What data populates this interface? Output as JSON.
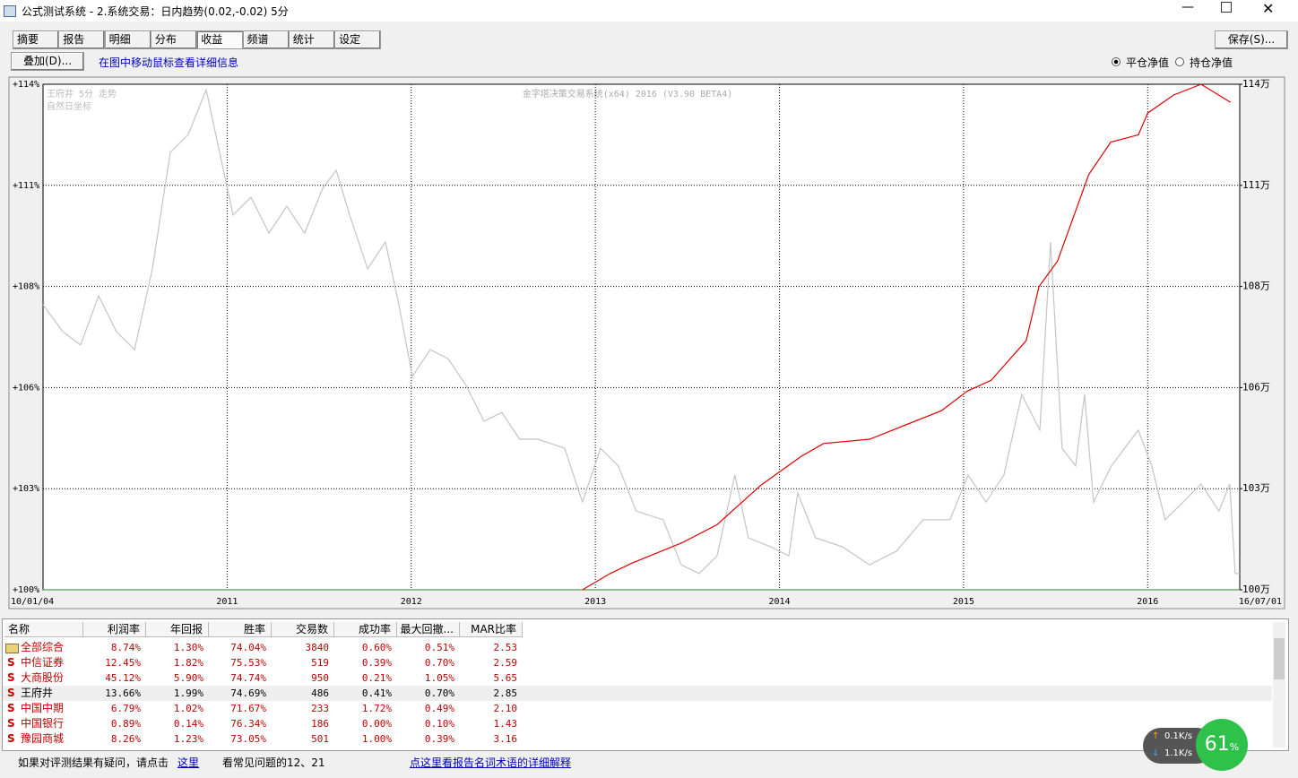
{
  "window": {
    "title": "公式测试系统 - 2.系统交易：日内趋势(0.02,-0.02) 5分"
  },
  "tabs": [
    "摘要",
    "报告",
    "明细",
    "分布",
    "收益",
    "频谱",
    "统计",
    "设定"
  ],
  "buttons": {
    "save": "保存(S)...",
    "overlay": "叠加(D)..."
  },
  "hint": "在图中移动鼠标查看详细信息",
  "radios": [
    "平仓净值",
    "持仓净值"
  ],
  "chart_data": {
    "type": "line",
    "annotations": [
      "王府井 5分 走势",
      "自然日坐标",
      "金字塔决策交易系统(x64) 2016 (V3.90 BETA4)"
    ],
    "xlim": [
      2010.0,
      2016.5
    ],
    "xticks": [
      {
        "value": 2010.0,
        "label": "10/01/04"
      },
      2011,
      2012,
      2013,
      2014,
      2015,
      2016,
      {
        "value": 2016.5,
        "label": "16/07/01"
      }
    ],
    "ylim": [
      100,
      114
    ],
    "yticks": [
      {
        "value": 100,
        "label": "+100%"
      },
      {
        "value": 102.8,
        "label": "+103%"
      },
      {
        "value": 105.6,
        "label": "+106%"
      },
      {
        "value": 108.4,
        "label": "+108%"
      },
      {
        "value": 111.2,
        "label": "+111%"
      },
      {
        "value": 114,
        "label": "+114%"
      }
    ],
    "y2lim": [
      100,
      114
    ],
    "y2ticks": [
      {
        "value": 100,
        "label": "100万"
      },
      {
        "value": 102.8,
        "label": "103万"
      },
      {
        "value": 105.6,
        "label": "106万"
      },
      {
        "value": 108.4,
        "label": "108万"
      },
      {
        "value": 111.2,
        "label": "111万"
      },
      {
        "value": 114,
        "label": "114万"
      }
    ],
    "grid": true,
    "series": [
      {
        "color": "#c4c4c4",
        "x": [
          2010.0,
          2010.107,
          2010.204,
          2010.302,
          2010.399,
          2010.497,
          2010.594,
          2010.691,
          2010.789,
          2010.886,
          2010.959,
          2011.032,
          2011.129,
          2011.227,
          2011.324,
          2011.421,
          2011.519,
          2011.592,
          2011.665,
          2011.763,
          2011.86,
          2011.933,
          2012.006,
          2012.103,
          2012.2,
          2012.298,
          2012.395,
          2012.492,
          2012.589,
          2012.687,
          2012.833,
          2012.93,
          2013.028,
          2013.125,
          2013.222,
          2013.368,
          2013.466,
          2013.564,
          2013.661,
          2013.758,
          2013.831,
          2013.953,
          2014.051,
          2014.099,
          2014.196,
          2014.342,
          2014.489,
          2014.635,
          2014.781,
          2014.927,
          2015.024,
          2015.122,
          2015.219,
          2015.316,
          2015.414,
          2015.472,
          2015.535,
          2015.609,
          2015.657,
          2015.706,
          2015.803,
          2015.949,
          2016.022,
          2016.095,
          2016.193,
          2016.29,
          2016.387,
          2016.446,
          2016.475,
          2016.5
        ],
        "values": [
          107.89,
          107.15,
          106.78,
          108.14,
          107.15,
          106.65,
          108.89,
          112.11,
          112.61,
          113.85,
          112.11,
          110.38,
          110.87,
          109.88,
          110.62,
          109.88,
          111.12,
          111.62,
          110.38,
          108.89,
          109.63,
          107.89,
          105.91,
          106.65,
          106.4,
          105.66,
          104.67,
          104.91,
          104.17,
          104.17,
          103.92,
          102.43,
          103.92,
          103.43,
          102.18,
          101.94,
          100.69,
          100.45,
          100.94,
          103.18,
          101.44,
          101.19,
          100.94,
          102.68,
          101.44,
          101.19,
          100.69,
          101.07,
          101.94,
          101.94,
          103.18,
          102.43,
          103.18,
          105.41,
          104.42,
          109.63,
          103.92,
          103.43,
          105.41,
          102.43,
          103.43,
          104.42,
          103.43,
          101.94,
          102.43,
          102.93,
          102.18,
          102.93,
          100.45,
          100.45
        ]
      },
      {
        "color": "#e00000",
        "axis": "y2",
        "x": [
          2012.93,
          2013.08,
          2013.2,
          2013.47,
          2013.66,
          2013.9,
          2014.12,
          2014.24,
          2014.49,
          2014.88,
          2015.02,
          2015.15,
          2015.34,
          2015.41,
          2015.51,
          2015.68,
          2015.8,
          2015.95,
          2016.0,
          2016.14,
          2016.29,
          2016.45
        ],
        "values": [
          100,
          100.45,
          100.74,
          101.3,
          101.8,
          102.9,
          103.7,
          104.05,
          104.17,
          104.96,
          105.5,
          105.8,
          106.9,
          108.4,
          109.1,
          111.5,
          112.4,
          112.6,
          113.2,
          113.7,
          114,
          113.5
        ]
      }
    ]
  },
  "table": {
    "columns": [
      "名称",
      "利润率",
      "年回报",
      "胜率",
      "交易数",
      "成功率",
      "最大回撤...",
      "MAR比率"
    ],
    "rows": [
      {
        "cells": [
          "全部综合",
          "8.74%",
          "1.30%",
          "74.04%",
          "3840",
          "0.60%",
          "0.51%",
          "2.53"
        ]
      },
      {
        "icon": "S",
        "cells": [
          "中信证券",
          "12.45%",
          "1.82%",
          "75.53%",
          "519",
          "0.39%",
          "0.70%",
          "2.59"
        ]
      },
      {
        "icon": "S",
        "cells": [
          "大商股份",
          "45.12%",
          "5.90%",
          "74.74%",
          "950",
          "0.21%",
          "1.05%",
          "5.65"
        ]
      },
      {
        "icon": "S",
        "cells": [
          "王府井",
          "13.66%",
          "1.99%",
          "74.69%",
          "486",
          "0.41%",
          "0.70%",
          "2.85"
        ]
      },
      {
        "icon": "S",
        "cells": [
          "中国中期",
          "6.79%",
          "1.02%",
          "71.67%",
          "233",
          "1.72%",
          "0.49%",
          "2.10"
        ]
      },
      {
        "icon": "S",
        "cells": [
          "中国银行",
          "0.89%",
          "0.14%",
          "76.34%",
          "186",
          "0.00%",
          "0.10%",
          "1.43"
        ]
      },
      {
        "icon": "S",
        "cells": [
          "豫园商城",
          "8.26%",
          "1.23%",
          "73.05%",
          "501",
          "1.00%",
          "0.39%",
          "3.16"
        ]
      }
    ]
  },
  "footer": {
    "question": "如果对评测结果有疑问，请点击",
    "link": "这里",
    "faq": "看常见问题的12、21",
    "glossary": "点这里看报告名词术语的详细解释"
  },
  "network": {
    "up": "0.1K/s",
    "down": "1.1K/s",
    "cpu": "61",
    "cpu_unit": "%"
  }
}
